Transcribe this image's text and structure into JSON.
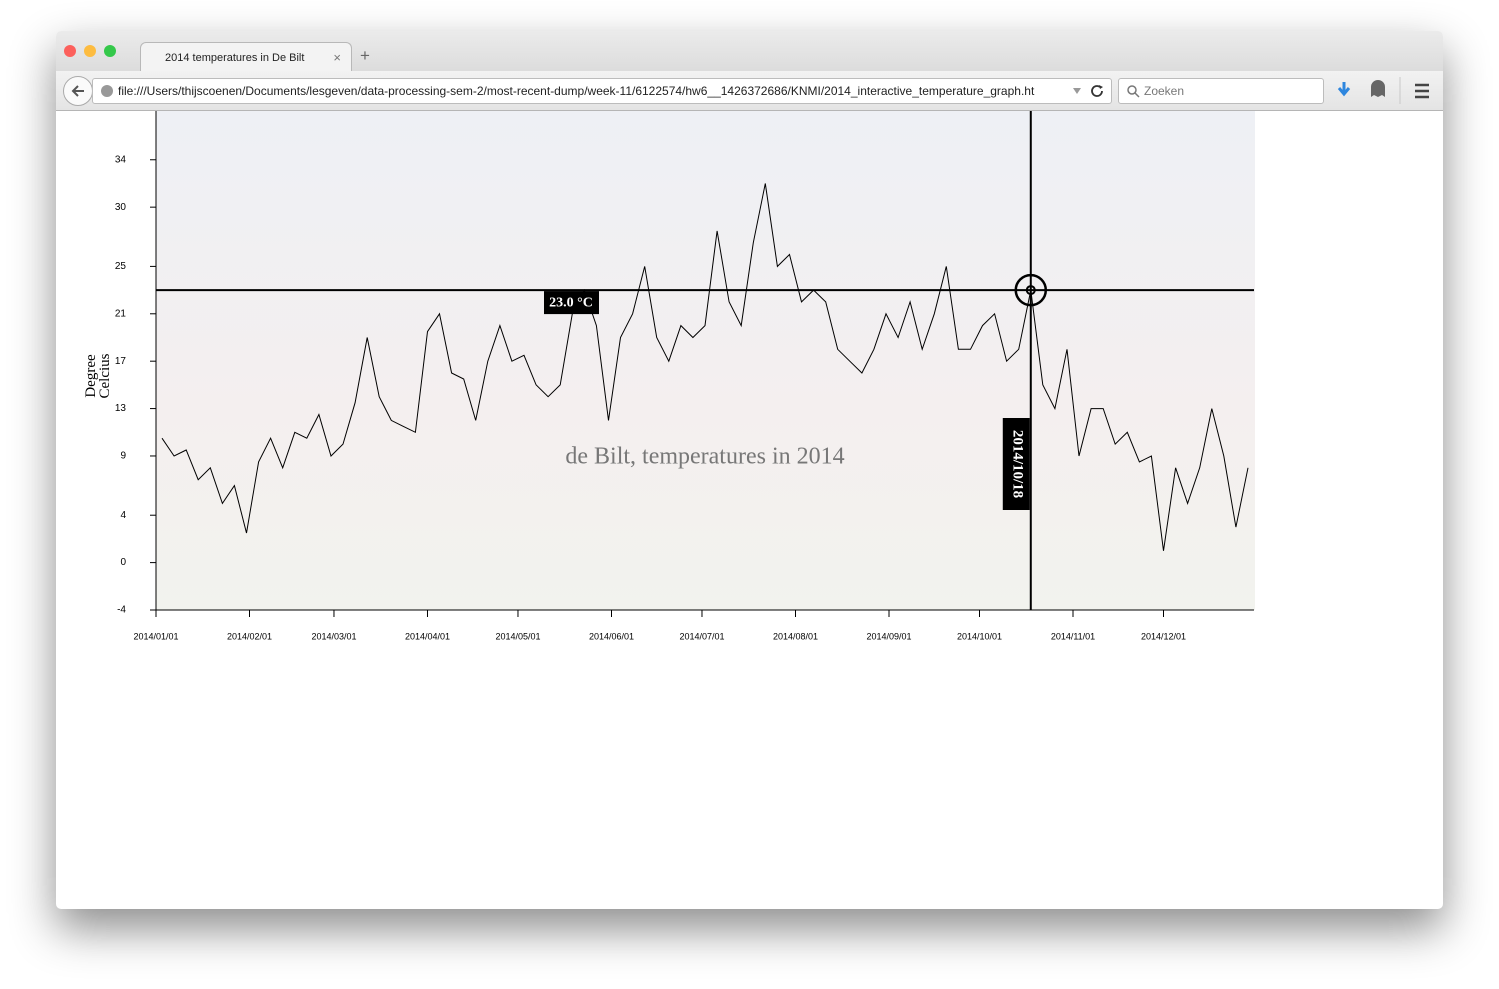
{
  "browser": {
    "tab_title": "2014 temperatures in De Bilt",
    "url": "file:///Users/thijscoenen/Documents/lesgeven/data-processing-sem-2/most-recent-dump/week-11/6122574/hw6__1426372686/KNMI/2014_interactive_temperature_graph.ht",
    "search_placeholder": "Zoeken"
  },
  "chart_data": {
    "type": "line",
    "title": "de Bilt, temperatures in 2014",
    "ylabel": "Degree Celcius",
    "color": "#000000",
    "x": [
      "2014/01/03",
      "2014/01/07",
      "2014/01/11",
      "2014/01/15",
      "2014/01/19",
      "2014/01/23",
      "2014/01/27",
      "2014/01/31",
      "2014/02/04",
      "2014/02/08",
      "2014/02/12",
      "2014/02/16",
      "2014/02/20",
      "2014/02/24",
      "2014/02/28",
      "2014/03/04",
      "2014/03/08",
      "2014/03/12",
      "2014/03/16",
      "2014/03/20",
      "2014/03/24",
      "2014/03/28",
      "2014/04/01",
      "2014/04/05",
      "2014/04/09",
      "2014/04/13",
      "2014/04/17",
      "2014/04/21",
      "2014/04/25",
      "2014/04/29",
      "2014/05/03",
      "2014/05/07",
      "2014/05/11",
      "2014/05/15",
      "2014/05/19",
      "2014/05/23",
      "2014/05/27",
      "2014/05/31",
      "2014/06/04",
      "2014/06/08",
      "2014/06/12",
      "2014/06/16",
      "2014/06/20",
      "2014/06/24",
      "2014/06/28",
      "2014/07/02",
      "2014/07/06",
      "2014/07/10",
      "2014/07/14",
      "2014/07/18",
      "2014/07/22",
      "2014/07/26",
      "2014/07/30",
      "2014/08/03",
      "2014/08/07",
      "2014/08/11",
      "2014/08/15",
      "2014/08/19",
      "2014/08/23",
      "2014/08/27",
      "2014/08/31",
      "2014/09/04",
      "2014/09/08",
      "2014/09/12",
      "2014/09/16",
      "2014/09/20",
      "2014/09/24",
      "2014/09/28",
      "2014/10/02",
      "2014/10/06",
      "2014/10/10",
      "2014/10/14",
      "2014/10/18",
      "2014/10/22",
      "2014/10/26",
      "2014/10/30",
      "2014/11/03",
      "2014/11/07",
      "2014/11/11",
      "2014/11/15",
      "2014/11/19",
      "2014/11/23",
      "2014/11/27",
      "2014/12/01",
      "2014/12/05",
      "2014/12/09",
      "2014/12/13",
      "2014/12/17",
      "2014/12/21",
      "2014/12/25",
      "2014/12/29"
    ],
    "values": [
      10.5,
      9,
      9.5,
      7,
      8,
      5,
      6.5,
      2.5,
      8.5,
      10.5,
      8,
      11,
      10.5,
      12.5,
      9,
      10,
      13.5,
      19,
      14,
      12,
      11.5,
      11,
      19.5,
      21,
      16,
      15.5,
      12,
      17,
      20,
      17,
      17.5,
      15,
      14,
      15,
      21,
      23,
      20,
      12,
      19,
      21,
      25,
      19,
      17,
      20,
      19,
      20,
      28,
      22,
      20,
      27,
      32,
      25,
      26,
      22,
      23,
      22,
      18,
      17,
      16,
      18,
      21,
      19,
      22,
      18,
      21,
      25,
      18,
      18,
      20,
      21,
      17,
      18,
      23,
      15,
      13,
      18,
      9,
      13,
      13,
      10,
      11,
      8.5,
      9,
      1,
      8,
      5,
      8,
      13,
      9,
      3,
      8
    ],
    "xlim": [
      "2014/01/01",
      "2014/12/31"
    ],
    "xticks": [
      "2014/01/01",
      "2014/02/01",
      "2014/03/01",
      "2014/04/01",
      "2014/05/01",
      "2014/06/01",
      "2014/07/01",
      "2014/08/01",
      "2014/09/01",
      "2014/10/01",
      "2014/11/01",
      "2014/12/01"
    ],
    "ylim": [
      -4,
      38.2
    ],
    "yticks": [
      -4,
      0,
      4,
      9,
      13,
      17,
      21,
      25,
      30,
      34
    ],
    "crosshair": {
      "x": "2014/10/18",
      "y": 23,
      "y_label": "23.0 °C"
    }
  }
}
